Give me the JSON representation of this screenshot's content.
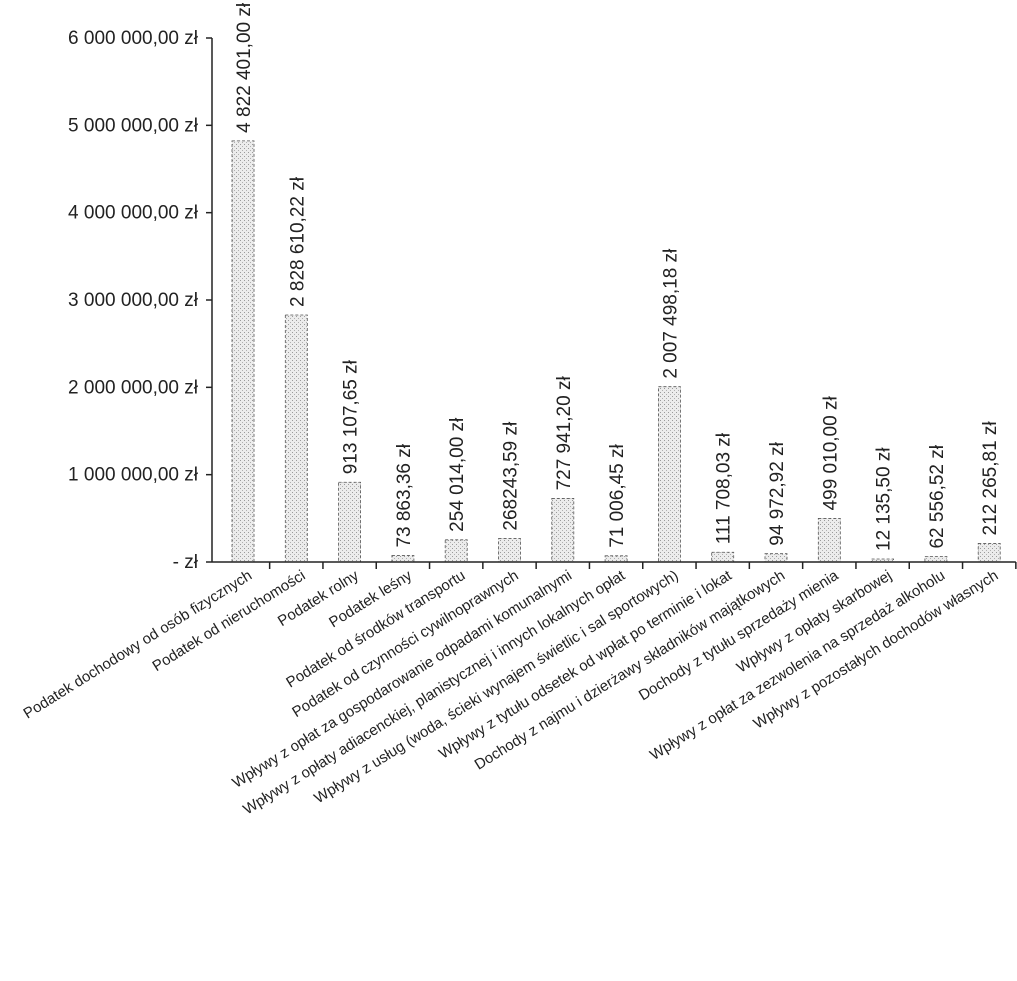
{
  "chart_data": {
    "type": "bar",
    "title": "",
    "xlabel": "",
    "ylabel": "",
    "ylim": [
      0,
      6000000
    ],
    "y_ticks": [
      {
        "value": 0,
        "label": "-   zł"
      },
      {
        "value": 1000000,
        "label": "1 000 000,00 zł"
      },
      {
        "value": 2000000,
        "label": "2 000 000,00 zł"
      },
      {
        "value": 3000000,
        "label": "3 000 000,00 zł"
      },
      {
        "value": 4000000,
        "label": "4 000 000,00 zł"
      },
      {
        "value": 5000000,
        "label": "5 000 000,00 zł"
      },
      {
        "value": 6000000,
        "label": "6 000 000,00 zł"
      }
    ],
    "grid": false,
    "legend": "none",
    "categories": [
      "Podatek dochodowy od osób fizycznych",
      "Podatek od nieruchomości",
      "Podatek rolny",
      "Podatek leśny",
      "Podatek od środków transportu",
      "Podatek od czynności cywilnoprawnych",
      "Wpływy z opłat za gospodarowanie odpadami komunalnymi",
      "Wpływy z opłaty adiacenckiej, planistycznej i innych lokalnych opłat",
      "Wpływy z usług (woda, ścieki wynajem świetlic i sal sportowych)",
      "Wpływy z tytułu odsetek od wpłat po terminie i lokat",
      "Dochody z najmu i dzierżawy składników majątkowych",
      "Dochody z tytułu sprzedaży mienia",
      "Wpływy z opłaty skarbowej",
      "Wpływy z opłat za zezwolenia na sprzedaż alkoholu",
      "Wpływy z pozostałych dochodów własnych"
    ],
    "values": [
      4822401.0,
      2828610.22,
      913107.65,
      73863.36,
      254014.0,
      268243.59,
      727941.2,
      71006.45,
      2007498.18,
      111708.03,
      94972.92,
      499010.0,
      12135.5,
      62556.52,
      212265.81
    ],
    "data_labels": [
      "4 822 401,00 zł",
      "2 828 610,22 zł",
      "913 107,65 zł",
      "73 863,36 zł",
      "254 014,00 zł",
      "268243,59 zł",
      "727 941,20 zł",
      "71 006,45 zł",
      "2 007 498,18 zł",
      "111 708,03 zł",
      "94 972,92 zł",
      "499 010,00 zł",
      "12 135,50 zł",
      "62 556,52 zł",
      "212 265,81 zł"
    ],
    "colors": {
      "bar_fill": "#e4e4e4",
      "bar_edge": "#555555",
      "axis": "#222222",
      "text": "#222222"
    }
  }
}
